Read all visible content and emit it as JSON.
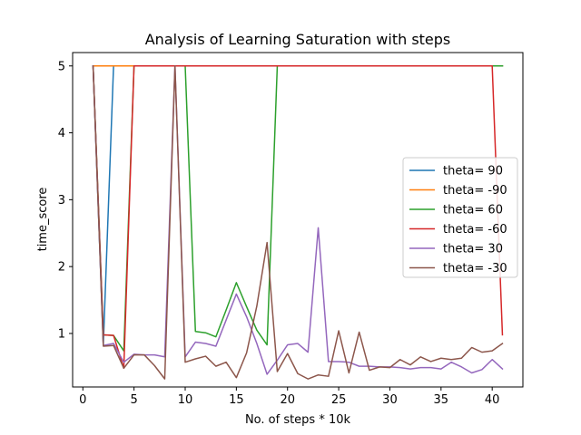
{
  "chart_data": {
    "type": "line",
    "title": "Analysis of Learning Saturation with steps",
    "xlabel": "No. of steps * 10k",
    "ylabel": "time_score",
    "xlim": [
      -0.0,
      43.0
    ],
    "ylim": [
      -0.0,
      5.2
    ],
    "xticks": [
      0,
      5,
      10,
      15,
      20,
      25,
      30,
      35,
      40
    ],
    "yticks": [
      1,
      2,
      3,
      4,
      5
    ],
    "grid": false,
    "legend_position": "center-right",
    "series": [
      {
        "name": "theta= 90",
        "color": "#1f77b4",
        "x": [
          1,
          2,
          3,
          4,
          5,
          6,
          7,
          8,
          9,
          10,
          11,
          12,
          13,
          14,
          15,
          16,
          17,
          18,
          19,
          20,
          21,
          22,
          23,
          24,
          25,
          26,
          27,
          28,
          29,
          30,
          31,
          32,
          33,
          34,
          35,
          36,
          37,
          38,
          39,
          40,
          41
        ],
        "y": [
          5.0,
          0.83,
          5.0,
          5.0,
          5.0,
          5.0,
          5.0,
          5.0,
          5.0,
          5.0,
          5.0,
          5.0,
          5.0,
          5.0,
          5.0,
          5.0,
          5.0,
          5.0,
          5.0,
          5.0,
          5.0,
          5.0,
          5.0,
          5.0,
          5.0,
          5.0,
          5.0,
          5.0,
          5.0,
          5.0,
          5.0,
          5.0,
          5.0,
          5.0,
          5.0,
          5.0,
          5.0,
          5.0,
          5.0,
          5.0,
          5.0
        ]
      },
      {
        "name": "theta= -90",
        "color": "#ff7f0e",
        "x": [
          1,
          2,
          3,
          4,
          5,
          6,
          7,
          8,
          9,
          10,
          11,
          12,
          13,
          14,
          15,
          16,
          17,
          18,
          19,
          20,
          21,
          22,
          23,
          24,
          25,
          26,
          27,
          28,
          29,
          30,
          31,
          32,
          33,
          34,
          35,
          36,
          37,
          38,
          39,
          40,
          41
        ],
        "y": [
          5.0,
          5.0,
          5.0,
          5.0,
          5.0,
          5.0,
          5.0,
          5.0,
          5.0,
          5.0,
          5.0,
          5.0,
          5.0,
          5.0,
          5.0,
          5.0,
          5.0,
          5.0,
          5.0,
          5.0,
          5.0,
          5.0,
          5.0,
          5.0,
          5.0,
          5.0,
          5.0,
          5.0,
          5.0,
          5.0,
          5.0,
          5.0,
          5.0,
          5.0,
          5.0,
          5.0,
          5.0,
          5.0,
          5.0,
          5.0,
          5.0
        ]
      },
      {
        "name": "theta= 60",
        "color": "#2ca02c",
        "x": [
          1,
          2,
          3,
          4,
          5,
          6,
          7,
          8,
          9,
          10,
          11,
          12,
          13,
          14,
          15,
          16,
          17,
          18,
          19,
          20,
          21,
          22,
          23,
          24,
          25,
          26,
          27,
          28,
          29,
          30,
          31,
          32,
          33,
          34,
          35,
          36,
          37,
          38,
          39,
          40,
          41
        ],
        "y": [
          5.0,
          0.98,
          0.97,
          0.74,
          5.0,
          5.0,
          5.0,
          5.0,
          5.0,
          5.0,
          1.03,
          1.01,
          0.95,
          1.35,
          1.76,
          1.4,
          1.05,
          0.83,
          5.0,
          5.0,
          5.0,
          5.0,
          5.0,
          5.0,
          5.0,
          5.0,
          5.0,
          5.0,
          5.0,
          5.0,
          5.0,
          5.0,
          5.0,
          5.0,
          5.0,
          5.0,
          5.0,
          5.0,
          5.0,
          5.0,
          5.0
        ]
      },
      {
        "name": "theta= -60",
        "color": "#d62728",
        "x": [
          1,
          2,
          3,
          4,
          5,
          6,
          7,
          8,
          9,
          10,
          11,
          12,
          13,
          14,
          15,
          16,
          17,
          18,
          19,
          20,
          21,
          22,
          23,
          24,
          25,
          26,
          27,
          28,
          29,
          30,
          31,
          32,
          33,
          34,
          35,
          36,
          37,
          38,
          39,
          40,
          41
        ],
        "y": [
          5.0,
          0.98,
          0.97,
          0.48,
          5.0,
          5.0,
          5.0,
          5.0,
          5.0,
          5.0,
          5.0,
          5.0,
          5.0,
          5.0,
          5.0,
          5.0,
          5.0,
          5.0,
          5.0,
          5.0,
          5.0,
          5.0,
          5.0,
          5.0,
          5.0,
          5.0,
          5.0,
          5.0,
          5.0,
          5.0,
          5.0,
          5.0,
          5.0,
          5.0,
          5.0,
          5.0,
          5.0,
          5.0,
          5.0,
          5.0,
          0.98
        ]
      },
      {
        "name": "theta= 30",
        "color": "#9467bd",
        "x": [
          1,
          2,
          3,
          4,
          5,
          6,
          7,
          8,
          9,
          10,
          11,
          12,
          13,
          14,
          15,
          16,
          17,
          18,
          19,
          20,
          21,
          22,
          23,
          24,
          25,
          26,
          27,
          28,
          29,
          30,
          31,
          32,
          33,
          34,
          35,
          36,
          37,
          38,
          39,
          40,
          41
        ],
        "y": [
          5.0,
          0.82,
          0.85,
          0.57,
          0.69,
          0.68,
          0.68,
          0.65,
          5.0,
          0.65,
          0.87,
          0.85,
          0.81,
          1.2,
          1.59,
          1.25,
          0.85,
          0.39,
          0.6,
          0.83,
          0.85,
          0.72,
          2.58,
          0.58,
          0.58,
          0.57,
          0.51,
          0.51,
          0.5,
          0.5,
          0.49,
          0.47,
          0.49,
          0.49,
          0.47,
          0.57,
          0.5,
          0.41,
          0.46,
          0.61,
          0.47
        ]
      },
      {
        "name": "theta= -30",
        "color": "#8c564b",
        "x": [
          1,
          2,
          3,
          4,
          5,
          6,
          7,
          8,
          9,
          10,
          11,
          12,
          13,
          14,
          15,
          16,
          17,
          18,
          19,
          20,
          21,
          22,
          23,
          24,
          25,
          26,
          27,
          28,
          29,
          30,
          31,
          32,
          33,
          34,
          35,
          36,
          37,
          38,
          39,
          40,
          41
        ],
        "y": [
          5.0,
          0.81,
          0.82,
          0.48,
          0.68,
          0.68,
          0.52,
          0.32,
          5.0,
          0.57,
          0.62,
          0.66,
          0.51,
          0.57,
          0.34,
          0.71,
          1.41,
          2.36,
          0.43,
          0.7,
          0.4,
          0.32,
          0.38,
          0.36,
          1.04,
          0.41,
          1.02,
          0.45,
          0.5,
          0.49,
          0.61,
          0.53,
          0.65,
          0.58,
          0.63,
          0.61,
          0.63,
          0.79,
          0.72,
          0.74,
          0.85
        ]
      }
    ]
  }
}
